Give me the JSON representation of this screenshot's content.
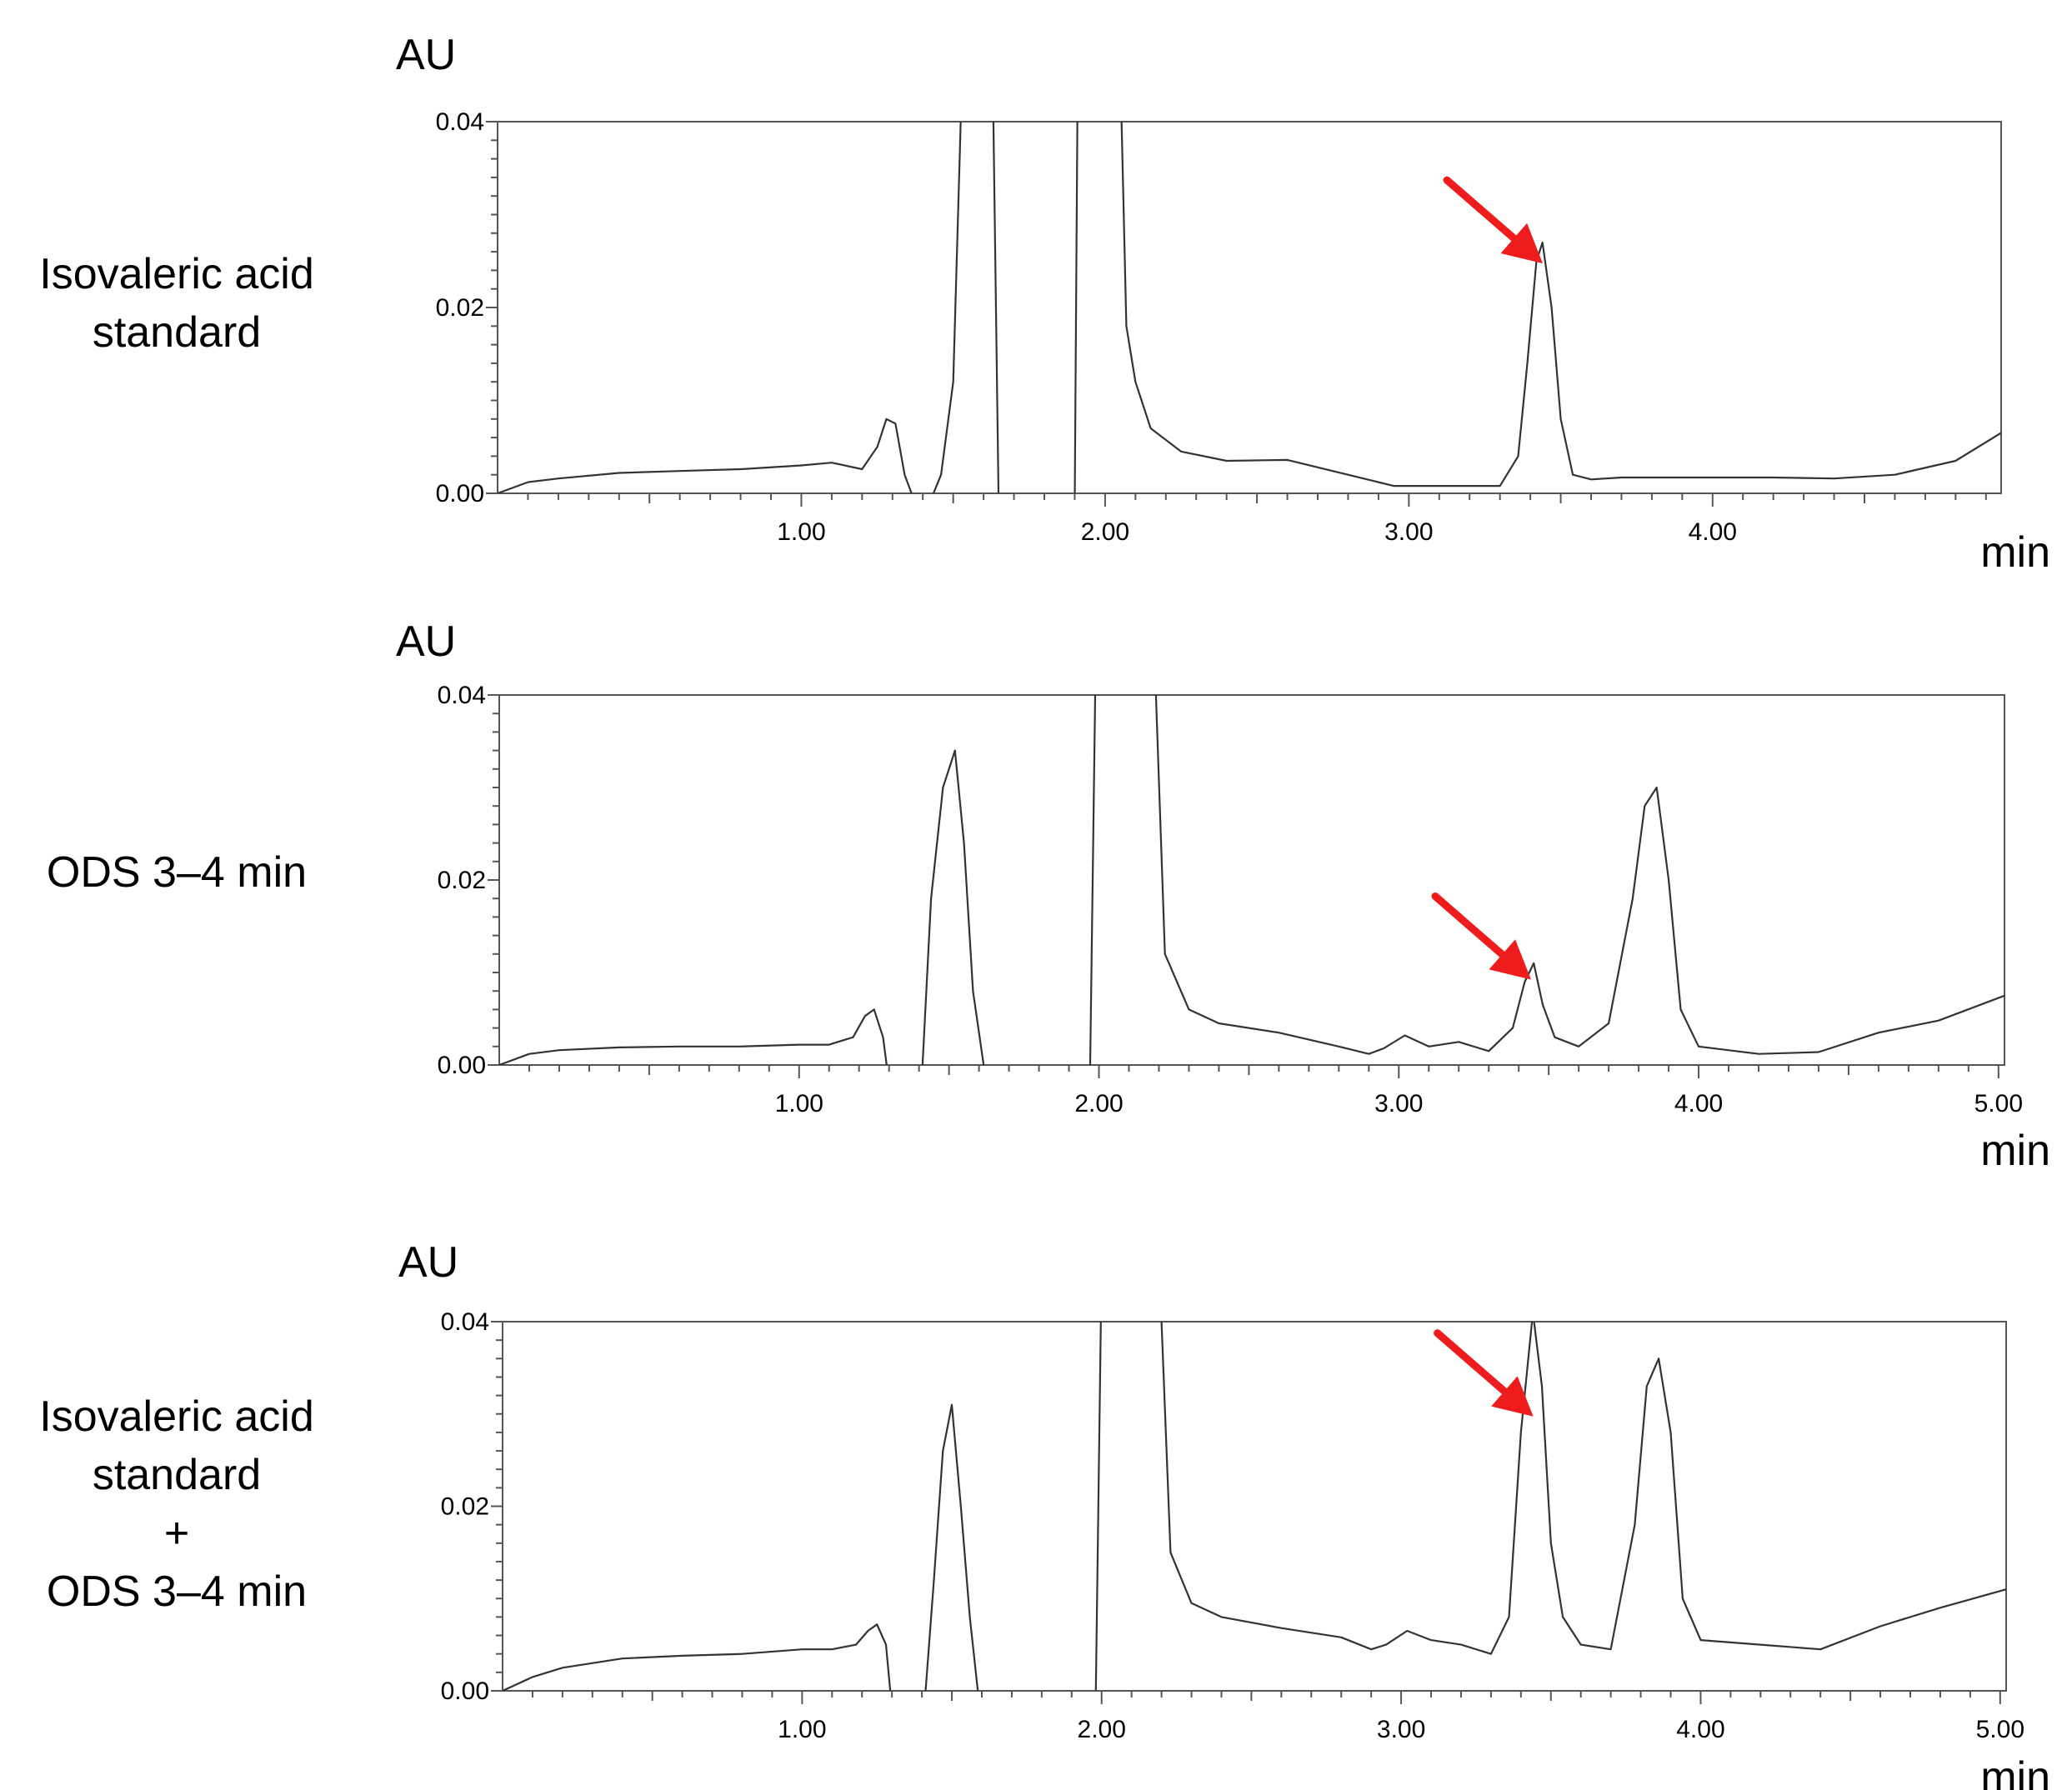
{
  "figure": {
    "panels": [
      {
        "label_lines": [
          "Isovaleric acid",
          "standard"
        ]
      },
      {
        "label_lines": [
          "ODS 3–4 min"
        ]
      },
      {
        "label_lines": [
          "Isovaleric acid",
          "standard",
          "+",
          "ODS 3–4 min"
        ]
      }
    ],
    "arrow_color": "#ee1c1c",
    "trace_color": "#333333",
    "axis_color": "#555555"
  },
  "chart_data": [
    {
      "type": "line",
      "ylabel": "AU",
      "xlabel": "min",
      "ylim": [
        0,
        0.04
      ],
      "xlim": [
        0,
        4.95
      ],
      "x_ticks": [
        1.0,
        2.0,
        3.0,
        4.0
      ],
      "x_tick_labels": [
        "1.00",
        "2.00",
        "3.00",
        "4.00"
      ],
      "y_ticks": [
        0,
        0.02,
        0.04
      ],
      "y_tick_labels": [
        "0.00",
        "0.02",
        "0.04"
      ],
      "grid": false,
      "annotations": [
        {
          "type": "arrow",
          "x": 3.43,
          "y": 0.026
        }
      ],
      "series": [
        {
          "x": [
            0.0,
            0.1,
            0.2,
            0.4,
            0.6,
            0.8,
            1.0,
            1.1,
            1.2,
            1.25,
            1.28,
            1.31,
            1.34,
            1.38,
            1.42,
            1.46,
            1.5,
            1.53,
            1.56,
            1.6,
            1.63,
            1.65,
            1.9,
            1.91,
            2.05,
            2.07,
            2.1,
            2.15,
            2.25,
            2.4,
            2.6,
            2.8,
            2.95,
            3.05,
            3.2,
            3.3,
            3.36,
            3.39,
            3.42,
            3.44,
            3.47,
            3.5,
            3.54,
            3.6,
            3.7,
            3.8,
            4.0,
            4.2,
            4.4,
            4.6,
            4.8,
            4.95
          ],
          "y": [
            0.0,
            0.0012,
            0.0016,
            0.0022,
            0.0024,
            0.0026,
            0.003,
            0.0033,
            0.0026,
            0.005,
            0.008,
            0.0075,
            0.002,
            -0.0015,
            -0.0012,
            0.002,
            0.012,
            0.046,
            0.046,
            0.046,
            0.046,
            -0.002,
            -0.002,
            0.046,
            0.046,
            0.018,
            0.012,
            0.007,
            0.0045,
            0.0035,
            0.0036,
            0.002,
            0.0008,
            0.0008,
            0.0008,
            0.0008,
            0.004,
            0.014,
            0.025,
            0.027,
            0.02,
            0.008,
            0.002,
            0.0015,
            0.0017,
            0.0017,
            0.0017,
            0.0017,
            0.0016,
            0.002,
            0.0035,
            0.0065
          ]
        }
      ]
    },
    {
      "type": "line",
      "ylabel": "AU",
      "xlabel": "min",
      "ylim": [
        0,
        0.04
      ],
      "xlim": [
        0,
        5.02
      ],
      "x_ticks": [
        1.0,
        2.0,
        3.0,
        4.0,
        5.0
      ],
      "x_tick_labels": [
        "1.00",
        "2.00",
        "3.00",
        "4.00",
        "5.00"
      ],
      "y_ticks": [
        0,
        0.02,
        0.04
      ],
      "y_tick_labels": [
        "0.00",
        "0.02",
        "0.04"
      ],
      "grid": false,
      "annotations": [
        {
          "type": "arrow",
          "x": 3.43,
          "y": 0.0105
        }
      ],
      "series": [
        {
          "x": [
            0.0,
            0.1,
            0.2,
            0.4,
            0.6,
            0.8,
            1.0,
            1.1,
            1.18,
            1.22,
            1.25,
            1.28,
            1.3,
            1.33,
            1.38,
            1.41,
            1.44,
            1.48,
            1.52,
            1.55,
            1.58,
            1.62,
            1.64,
            1.97,
            1.99,
            2.17,
            2.19,
            2.22,
            2.3,
            2.4,
            2.6,
            2.8,
            2.9,
            2.95,
            3.02,
            3.1,
            3.2,
            3.3,
            3.38,
            3.42,
            3.45,
            3.48,
            3.52,
            3.6,
            3.7,
            3.78,
            3.82,
            3.86,
            3.9,
            3.94,
            4.0,
            4.2,
            4.4,
            4.6,
            4.8,
            5.02
          ],
          "y": [
            0.0,
            0.0012,
            0.0016,
            0.0019,
            0.002,
            0.002,
            0.0022,
            0.0022,
            0.003,
            0.0053,
            0.006,
            0.003,
            -0.002,
            -0.004,
            -0.004,
            -0.001,
            0.018,
            0.03,
            0.034,
            0.024,
            0.008,
            -0.001,
            -0.002,
            -0.002,
            0.046,
            0.046,
            0.04,
            0.012,
            0.006,
            0.0045,
            0.0035,
            0.002,
            0.0012,
            0.0018,
            0.0032,
            0.002,
            0.0025,
            0.0015,
            0.004,
            0.009,
            0.011,
            0.0065,
            0.003,
            0.002,
            0.0045,
            0.018,
            0.028,
            0.03,
            0.02,
            0.006,
            0.002,
            0.0012,
            0.0014,
            0.0035,
            0.0048,
            0.0075
          ]
        }
      ]
    },
    {
      "type": "line",
      "ylabel": "AU",
      "xlabel": "min",
      "ylim": [
        0,
        0.04
      ],
      "xlim": [
        0,
        5.02
      ],
      "x_ticks": [
        1.0,
        2.0,
        3.0,
        4.0,
        5.0
      ],
      "x_tick_labels": [
        "1.00",
        "2.00",
        "3.00",
        "4.00",
        "5.00"
      ],
      "y_ticks": [
        0,
        0.02,
        0.04
      ],
      "y_tick_labels": [
        "0.00",
        "0.02",
        "0.04"
      ],
      "grid": false,
      "annotations": [
        {
          "type": "arrow",
          "x": 3.43,
          "y": 0.031
        }
      ],
      "series": [
        {
          "x": [
            0.0,
            0.1,
            0.2,
            0.4,
            0.6,
            0.8,
            1.0,
            1.1,
            1.18,
            1.22,
            1.25,
            1.28,
            1.3,
            1.32,
            1.38,
            1.41,
            1.44,
            1.47,
            1.5,
            1.53,
            1.56,
            1.59,
            1.61,
            1.98,
            2.0,
            2.18,
            2.2,
            2.23,
            2.3,
            2.4,
            2.6,
            2.8,
            2.9,
            2.95,
            3.02,
            3.1,
            3.2,
            3.3,
            3.36,
            3.4,
            3.44,
            3.47,
            3.5,
            3.54,
            3.6,
            3.7,
            3.78,
            3.82,
            3.86,
            3.9,
            3.94,
            4.0,
            4.2,
            4.4,
            4.6,
            4.8,
            5.02
          ],
          "y": [
            0.0,
            0.0015,
            0.0025,
            0.0035,
            0.0038,
            0.004,
            0.0045,
            0.0045,
            0.005,
            0.0065,
            0.0072,
            0.005,
            -0.002,
            -0.004,
            -0.004,
            -0.001,
            0.012,
            0.026,
            0.031,
            0.02,
            0.008,
            -0.001,
            -0.002,
            -0.002,
            0.046,
            0.046,
            0.04,
            0.015,
            0.0095,
            0.008,
            0.0068,
            0.0058,
            0.0045,
            0.005,
            0.0065,
            0.0055,
            0.005,
            0.004,
            0.008,
            0.028,
            0.041,
            0.033,
            0.016,
            0.008,
            0.005,
            0.0045,
            0.018,
            0.033,
            0.036,
            0.028,
            0.01,
            0.0055,
            0.005,
            0.0045,
            0.007,
            0.009,
            0.011
          ]
        }
      ]
    }
  ]
}
